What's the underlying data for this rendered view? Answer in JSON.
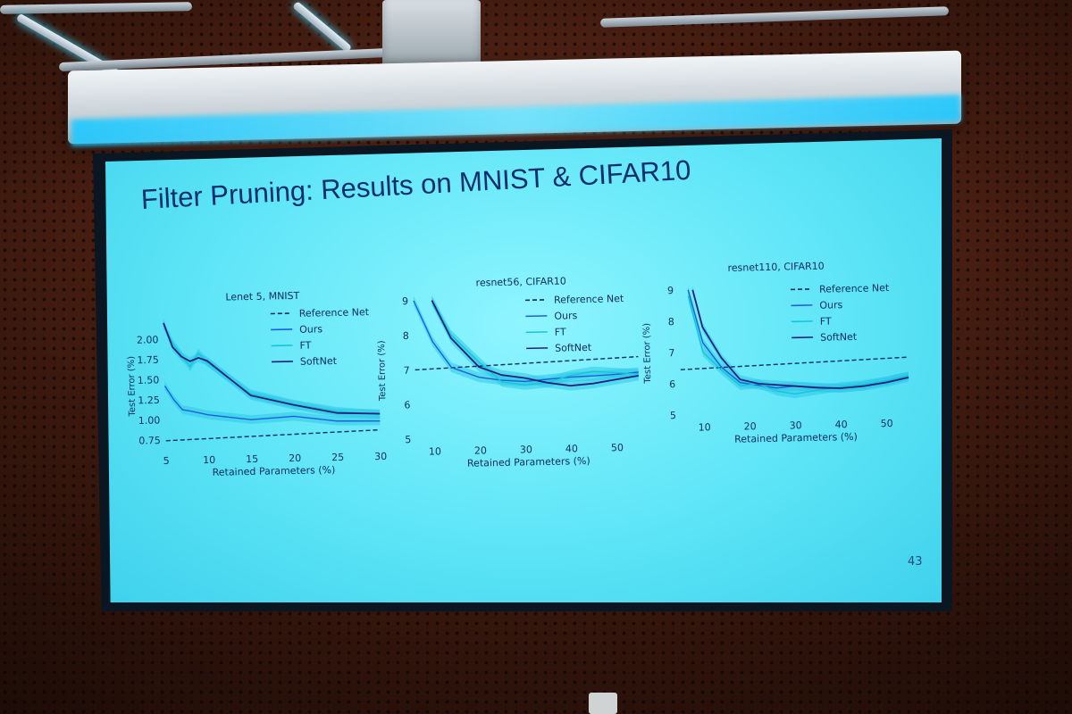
{
  "slide": {
    "title": "Filter Pruning: Results on MNIST & CIFAR10",
    "page_number": "43"
  },
  "colors": {
    "reference": "#0e2a66",
    "ours": "#1f5fd8",
    "ft": "#15c6d8",
    "softnet": "#27207a",
    "band": "#30c9e8"
  },
  "chart_data": [
    {
      "type": "line",
      "title": "Lenet 5, MNIST",
      "xlabel": "Retained Parameters (%)",
      "ylabel": "Test Error (%)",
      "xlim": [
        5,
        30
      ],
      "ylim": [
        0.65,
        2.2
      ],
      "xticks": [
        "5",
        "10",
        "15",
        "20",
        "25",
        "30"
      ],
      "yticks": [
        "0.75",
        "1.00",
        "1.25",
        "1.50",
        "1.75",
        "2.00"
      ],
      "xtick_values": [
        5,
        10,
        15,
        20,
        25,
        30
      ],
      "ytick_values": [
        0.75,
        1.0,
        1.25,
        1.5,
        1.75,
        2.0
      ],
      "legend": [
        "Reference Net",
        "Ours",
        "FT",
        "SoftNet"
      ],
      "legend_position": "top-right",
      "series": [
        {
          "name": "Reference Net",
          "style": "dashed",
          "x": [
            5,
            30
          ],
          "y": [
            0.74,
            0.82
          ]
        },
        {
          "name": "Ours",
          "x": [
            5,
            6,
            7,
            8,
            10,
            15,
            20,
            25,
            30
          ],
          "y": [
            1.42,
            1.25,
            1.12,
            1.1,
            1.05,
            0.98,
            1.01,
            0.94,
            0.93
          ]
        },
        {
          "name": "FT",
          "x": [
            5,
            6,
            7,
            8,
            9,
            10,
            15,
            20,
            25,
            30
          ],
          "y": [
            2.18,
            1.95,
            1.8,
            1.65,
            1.82,
            1.7,
            1.3,
            1.16,
            1.06,
            1.01
          ]
        },
        {
          "name": "SoftNet",
          "x": [
            5,
            6,
            7,
            8,
            9,
            10,
            15,
            20,
            25,
            30
          ],
          "y": [
            2.2,
            1.9,
            1.78,
            1.72,
            1.76,
            1.72,
            1.28,
            1.15,
            1.04,
            1.02
          ]
        }
      ]
    },
    {
      "type": "line",
      "title": "resnet56, CIFAR10",
      "xlabel": "Retained Parameters (%)",
      "ylabel": "Test Error (%)",
      "xlim": [
        6,
        55
      ],
      "ylim": [
        5,
        9
      ],
      "xticks": [
        "10",
        "20",
        "30",
        "40",
        "50"
      ],
      "yticks": [
        "5",
        "6",
        "7",
        "8",
        "9"
      ],
      "xtick_values": [
        10,
        20,
        30,
        40,
        50
      ],
      "ytick_values": [
        5,
        6,
        7,
        8,
        9
      ],
      "legend": [
        "Reference Net",
        "Ours",
        "FT",
        "SoftNet"
      ],
      "legend_position": "top-right",
      "series": [
        {
          "name": "Reference Net",
          "style": "dashed",
          "x": [
            6,
            55
          ],
          "y": [
            7.0,
            7.25
          ]
        },
        {
          "name": "Ours",
          "x": [
            6,
            10,
            14,
            20,
            25,
            30,
            35,
            40,
            45,
            50,
            55
          ],
          "y": [
            9.0,
            7.8,
            7.05,
            6.75,
            6.65,
            6.6,
            6.65,
            6.7,
            6.72,
            6.75,
            6.8
          ]
        },
        {
          "name": "FT",
          "x": [
            10,
            14,
            20,
            25,
            30,
            35,
            40,
            45,
            50,
            55
          ],
          "y": [
            9.0,
            8.0,
            7.2,
            6.6,
            6.5,
            6.55,
            6.75,
            6.85,
            6.8,
            6.75
          ]
        },
        {
          "name": "SoftNet",
          "x": [
            10,
            14,
            20,
            25,
            30,
            35,
            40,
            45,
            50,
            55
          ],
          "y": [
            9.0,
            7.9,
            7.05,
            6.8,
            6.7,
            6.55,
            6.45,
            6.5,
            6.6,
            6.7
          ]
        }
      ]
    },
    {
      "type": "line",
      "title": "resnet110, CIFAR10",
      "xlabel": "Retained Parameters (%)",
      "ylabel": "Test Error (%)",
      "xlim": [
        5,
        55
      ],
      "ylim": [
        5,
        9
      ],
      "xticks": [
        "10",
        "20",
        "30",
        "40",
        "50"
      ],
      "yticks": [
        "5",
        "6",
        "7",
        "8",
        "9"
      ],
      "xtick_values": [
        10,
        20,
        30,
        40,
        50
      ],
      "ytick_values": [
        5,
        6,
        7,
        8,
        9
      ],
      "legend": [
        "Reference Net",
        "Ours",
        "FT",
        "SoftNet"
      ],
      "legend_position": "top-right",
      "series": [
        {
          "name": "Reference Net",
          "style": "dashed",
          "x": [
            5,
            55
          ],
          "y": [
            6.45,
            6.7
          ]
        },
        {
          "name": "Ours",
          "x": [
            7,
            10,
            14,
            18,
            22,
            26,
            30,
            35,
            40,
            45,
            50,
            55
          ],
          "y": [
            9.0,
            7.3,
            6.5,
            6.0,
            5.9,
            5.8,
            5.85,
            5.8,
            5.75,
            5.8,
            5.95,
            6.1
          ]
        },
        {
          "name": "FT",
          "x": [
            7,
            10,
            14,
            18,
            22,
            26,
            30,
            35,
            40,
            45,
            50,
            55
          ],
          "y": [
            8.8,
            7.0,
            6.4,
            5.9,
            5.95,
            5.7,
            5.6,
            5.7,
            5.8,
            5.85,
            5.95,
            6.1
          ]
        },
        {
          "name": "SoftNet",
          "x": [
            8,
            10,
            14,
            18,
            22,
            26,
            30,
            35,
            40,
            45,
            50,
            55
          ],
          "y": [
            9.0,
            7.8,
            6.8,
            6.1,
            5.95,
            5.9,
            5.85,
            5.78,
            5.75,
            5.8,
            5.9,
            6.05
          ]
        }
      ]
    }
  ]
}
